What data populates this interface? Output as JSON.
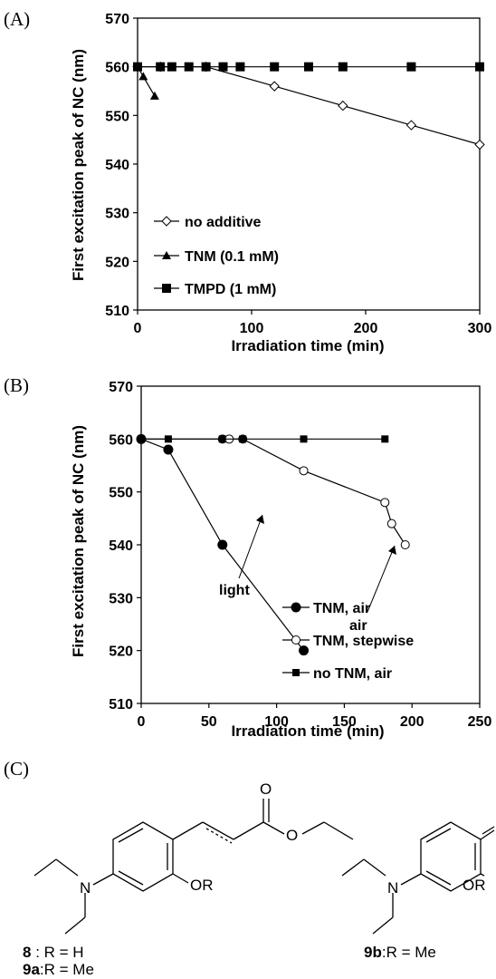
{
  "chart_data": [
    {
      "panel": "(A)",
      "type": "scatter",
      "xlabel": "Irradiation time (min)",
      "ylabel": "First excitation peak of NC (nm)",
      "xlim": [
        0,
        300
      ],
      "ylim": [
        510,
        570
      ],
      "xticks": [
        0,
        100,
        200,
        300
      ],
      "yticks": [
        510,
        520,
        530,
        540,
        550,
        560,
        570
      ],
      "grid": false,
      "legend_position": "bottom-left",
      "series": [
        {
          "name": "no additive",
          "marker": "diamond-open",
          "x": [
            0,
            20,
            60,
            120,
            180,
            240,
            300
          ],
          "y": [
            560,
            560,
            560,
            556,
            552,
            548,
            544
          ]
        },
        {
          "name": "TNM (0.1 mM)",
          "marker": "triangle-filled",
          "x": [
            0,
            5,
            15
          ],
          "y": [
            560,
            558,
            554
          ]
        },
        {
          "name": "TMPD (1 mM)",
          "marker": "square-filled",
          "x": [
            0,
            20,
            30,
            45,
            60,
            75,
            90,
            120,
            150,
            180,
            240,
            300
          ],
          "y": [
            560,
            560,
            560,
            560,
            560,
            560,
            560,
            560,
            560,
            560,
            560,
            560
          ]
        }
      ]
    },
    {
      "panel": "(B)",
      "type": "scatter",
      "xlabel": "Irradiation time (min)",
      "ylabel": "First excitation peak of NC (nm)",
      "xlim": [
        0,
        250
      ],
      "ylim": [
        510,
        570
      ],
      "xticks": [
        0,
        50,
        100,
        150,
        200,
        250
      ],
      "yticks": [
        510,
        520,
        530,
        540,
        550,
        560,
        570
      ],
      "grid": false,
      "legend_position": "bottom-right",
      "series": [
        {
          "name": "TNM, air",
          "marker": "circle-filled",
          "x": [
            0,
            20,
            60,
            120
          ],
          "y": [
            560,
            558,
            540,
            520
          ]
        },
        {
          "name": "TNM, stepwise",
          "marker": "circle-open",
          "x": [
            0,
            60,
            65,
            75,
            120,
            180,
            185,
            195
          ],
          "y": [
            560,
            560,
            560,
            560,
            554,
            548,
            544,
            540
          ]
        },
        {
          "name": "no TNM, air",
          "marker": "square-filled-small",
          "x": [
            0,
            20,
            60,
            75,
            120,
            180
          ],
          "y": [
            560,
            560,
            560,
            560,
            560,
            560
          ]
        }
      ],
      "annotations": [
        {
          "text": "light",
          "x": 75,
          "y": 560
        },
        {
          "text": "air",
          "x": 180,
          "y": 548
        }
      ]
    }
  ],
  "structures": {
    "panel_label": "(C)",
    "left_labels": {
      "line1_num": "8",
      "line1_rest": " : R = H",
      "line2_num": "9a",
      "line2_rest": ":R = Me"
    },
    "right_label": {
      "num": "9b",
      "rest": ":R = Me"
    },
    "atoms": {
      "oxygen": "O",
      "nitrogen": "N",
      "or_group": "OR"
    }
  }
}
